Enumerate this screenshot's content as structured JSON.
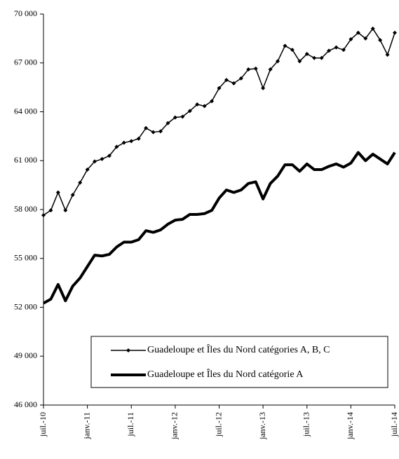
{
  "chart_data": {
    "type": "line",
    "categories": [
      "juil.-10",
      null,
      null,
      null,
      null,
      null,
      "janv.-11",
      null,
      null,
      null,
      null,
      null,
      "juil.-11",
      null,
      null,
      null,
      null,
      null,
      "janv.-12",
      null,
      null,
      null,
      null,
      null,
      "juil.-12",
      null,
      null,
      null,
      null,
      null,
      "janv.-13",
      null,
      null,
      null,
      null,
      null,
      "juil.-13",
      null,
      null,
      null,
      null,
      null,
      "janv.-14",
      null,
      null,
      null,
      null,
      null,
      "juil.-14"
    ],
    "series": [
      {
        "name": "Guadeloupe et Îles du Nord catégories A, B, C",
        "color": "#000000",
        "marker": "diamond",
        "width": 1.5,
        "values": [
          57650,
          57950,
          59050,
          57950,
          58900,
          59650,
          60450,
          60950,
          61100,
          61300,
          61850,
          62100,
          62200,
          62350,
          63000,
          62750,
          62800,
          63300,
          63650,
          63700,
          64050,
          64450,
          64350,
          64650,
          65450,
          65950,
          65750,
          66050,
          66600,
          66650,
          65450,
          66600,
          67100,
          68050,
          67800,
          67100,
          67550,
          67300,
          67300,
          67750,
          67950,
          67800,
          68450,
          68850,
          68500,
          69100,
          68400,
          67500,
          68850
        ]
      },
      {
        "name": "Guadeloupe et Îles du Nord catégorie A",
        "color": "#000000",
        "marker": "none",
        "width": 4,
        "values": [
          52250,
          52500,
          53400,
          52400,
          53300,
          53800,
          54500,
          55200,
          55150,
          55250,
          55700,
          56000,
          56000,
          56150,
          56700,
          56600,
          56750,
          57100,
          57350,
          57400,
          57700,
          57700,
          57750,
          57950,
          58700,
          59200,
          59050,
          59200,
          59600,
          59700,
          58650,
          59600,
          60050,
          60750,
          60750,
          60350,
          60800,
          60450,
          60450,
          60650,
          60800,
          60600,
          60850,
          61500,
          61000,
          61400,
          61100,
          60800,
          61500
        ]
      }
    ],
    "ylim": [
      46000,
      70000
    ],
    "yticks": [
      {
        "value": 46000,
        "label": "46 000"
      },
      {
        "value": 49000,
        "label": "49 000"
      },
      {
        "value": 52000,
        "label": "52 000"
      },
      {
        "value": 55000,
        "label": "55 000"
      },
      {
        "value": 58000,
        "label": "58 000"
      },
      {
        "value": 61000,
        "label": "61 000"
      },
      {
        "value": 64000,
        "label": "64 000"
      },
      {
        "value": 67000,
        "label": "67 000"
      },
      {
        "value": 70000,
        "label": "70 000"
      }
    ],
    "grid": false,
    "legend": "lower right"
  }
}
